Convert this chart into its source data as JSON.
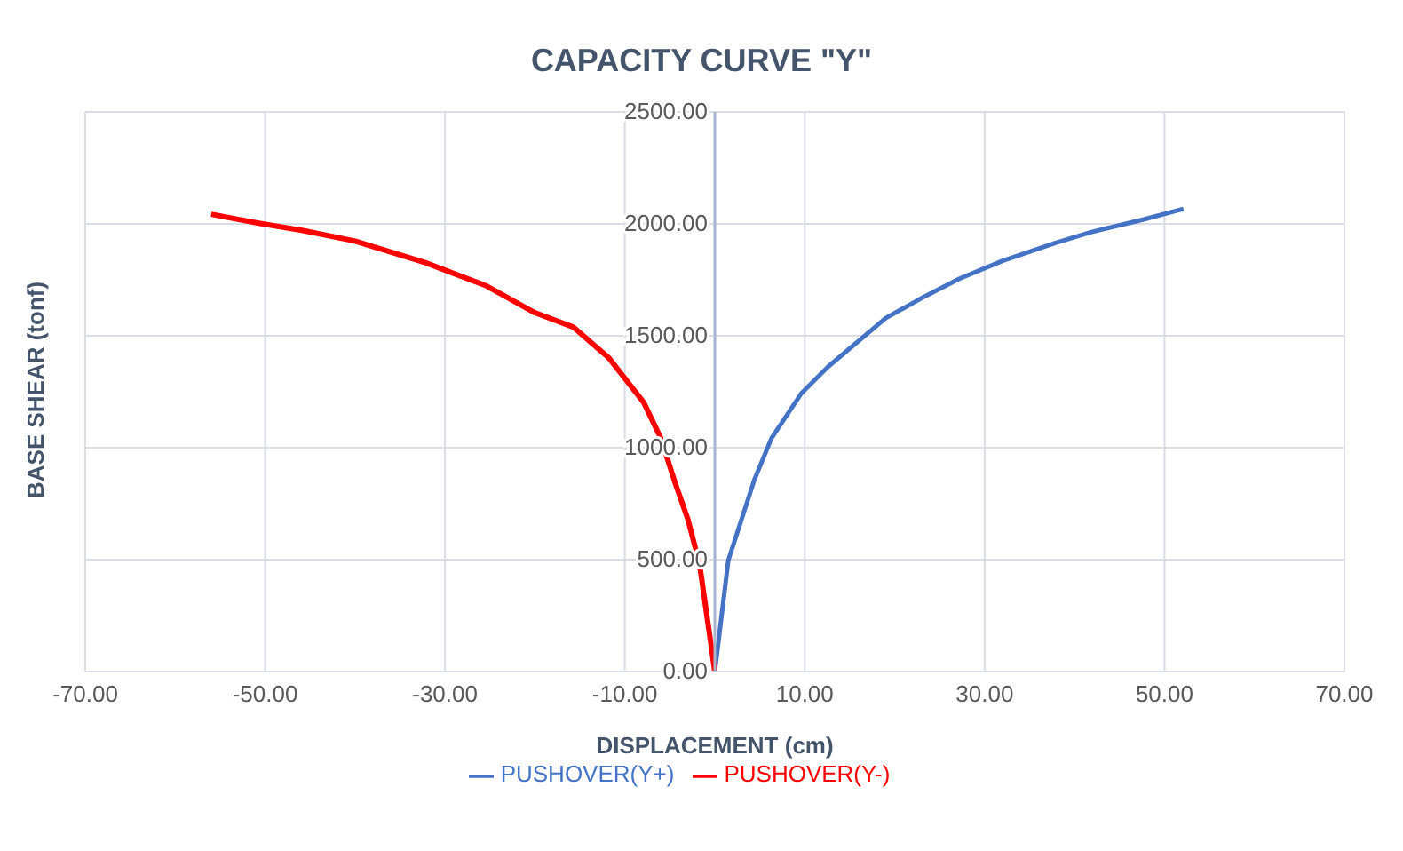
{
  "chart_data": {
    "type": "line",
    "title": "CAPACITY CURVE \"Y\"",
    "xlabel": "DISPLACEMENT (cm)",
    "ylabel": "BASE SHEAR (tonf)",
    "xlim": [
      -70,
      70
    ],
    "xticks": [
      {
        "value": -70,
        "label": "-70.00"
      },
      {
        "value": -50,
        "label": "-50.00"
      },
      {
        "value": -30,
        "label": "-30.00"
      },
      {
        "value": -10,
        "label": "-10.00"
      },
      {
        "value": 10,
        "label": "10.00"
      },
      {
        "value": 30,
        "label": "30.00"
      },
      {
        "value": 50,
        "label": "50.00"
      },
      {
        "value": 70,
        "label": "70.00"
      }
    ],
    "ylim": [
      0,
      2500
    ],
    "yticks": [
      {
        "value": 0,
        "label": "0.00"
      },
      {
        "value": 500,
        "label": "500.00"
      },
      {
        "value": 1000,
        "label": "1000.00"
      },
      {
        "value": 1500,
        "label": "1500.00"
      },
      {
        "value": 2000,
        "label": "2000.00"
      },
      {
        "value": 2500,
        "label": "2500.00"
      }
    ],
    "grid": true,
    "legend": "bottom",
    "marker": "none",
    "line_style": "solid",
    "series": [
      {
        "name": "PUSHOVER(Y+)",
        "color": "#4472c4",
        "x": [
          0,
          1.5,
          4.4,
          6.3,
          9.6,
          12.6,
          19,
          23.3,
          27.2,
          32,
          37.9,
          41.8,
          47.6,
          52.1
        ],
        "values": [
          0,
          497,
          857,
          1042,
          1242,
          1362,
          1579,
          1675,
          1755,
          1835,
          1915,
          1963,
          2019,
          2067
        ]
      },
      {
        "name": "PUSHOVER(Y-)",
        "color": "#ff0000",
        "x": [
          0,
          -1.7,
          -3,
          -4.4,
          -6,
          -7.9,
          -11.8,
          -15.7,
          -20,
          -25.4,
          -32.2,
          -40,
          -45.9,
          -50.7,
          -56
        ],
        "values": [
          0,
          481,
          681,
          841,
          1042,
          1202,
          1402,
          1538,
          1603,
          1723,
          1827,
          1923,
          1971,
          2003,
          2043
        ]
      }
    ]
  }
}
